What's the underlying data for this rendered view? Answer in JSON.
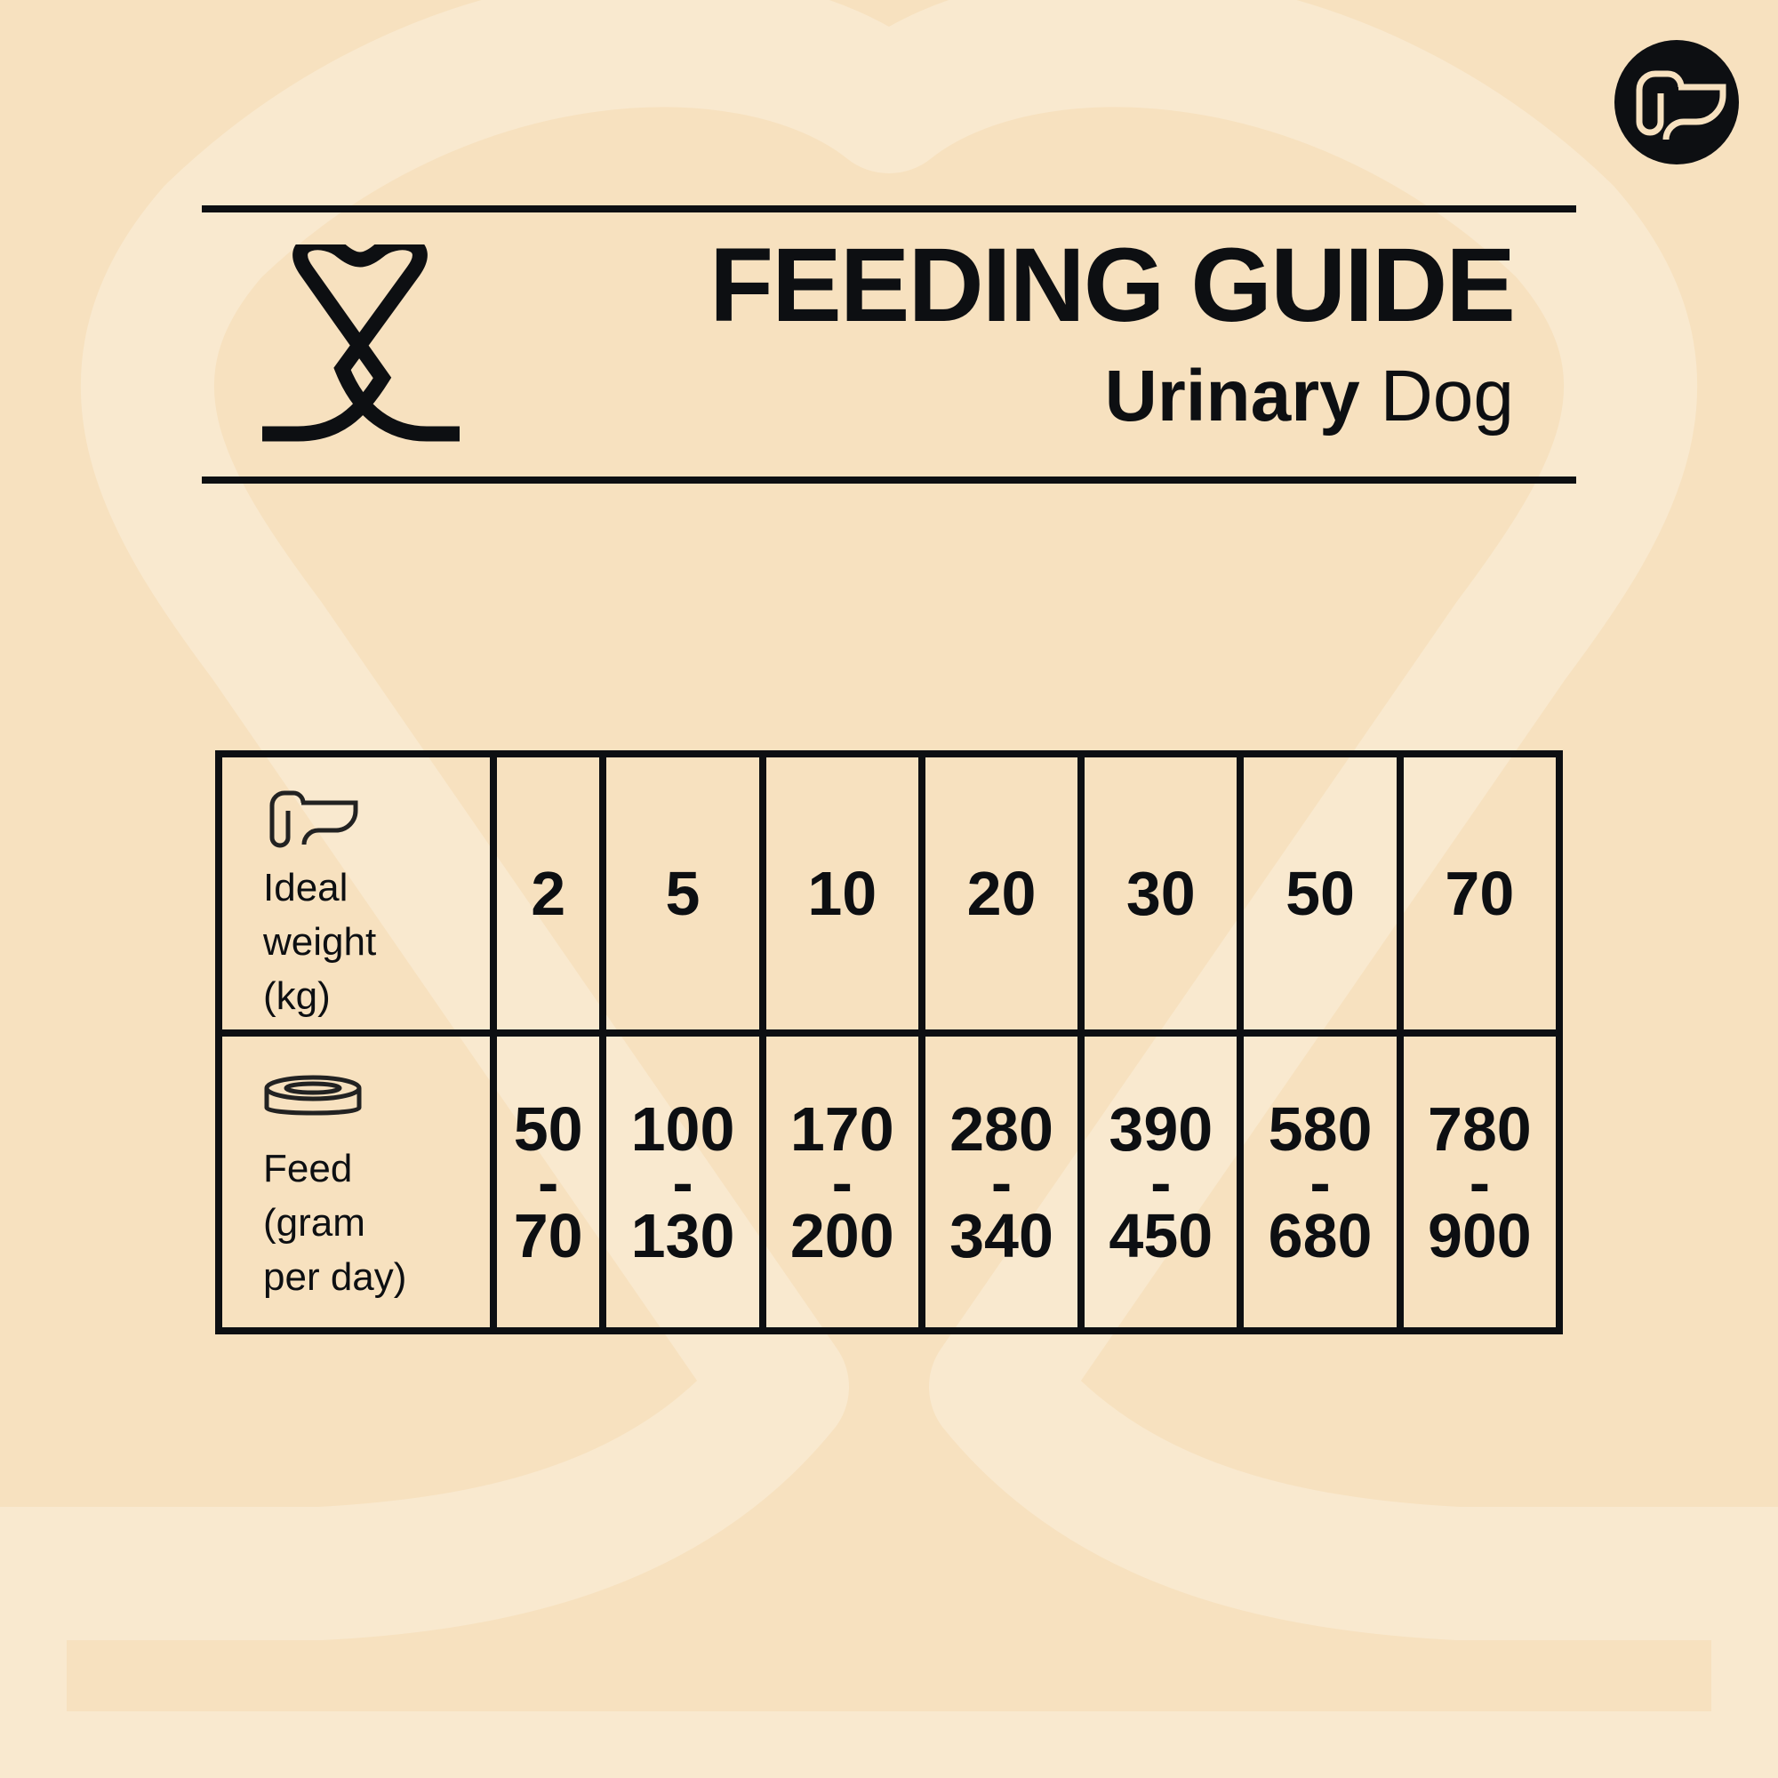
{
  "header": {
    "title": "FEEDING GUIDE",
    "subtitle_bold": "Urinary",
    "subtitle_regular": "Dog"
  },
  "colors": {
    "background": "#f7e1bf",
    "background_shape": "#f9e9cf",
    "ink": "#0d0f12"
  },
  "icons": {
    "badge": "dog-head-icon",
    "logo": "heart-ribbon-icon",
    "weight": "dog-head-icon",
    "feed": "bowl-icon"
  },
  "table": {
    "weight_label": [
      "Ideal",
      "weight",
      "(kg)"
    ],
    "feed_label": [
      "Feed",
      "(gram",
      "per day)"
    ],
    "weights": [
      "2",
      "5",
      "10",
      "20",
      "30",
      "50",
      "70"
    ],
    "feed": [
      {
        "min": "50",
        "sep": "-",
        "max": "70"
      },
      {
        "min": "100",
        "sep": "-",
        "max": "130"
      },
      {
        "min": "170",
        "sep": "-",
        "max": "200"
      },
      {
        "min": "280",
        "sep": "-",
        "max": "340"
      },
      {
        "min": "390",
        "sep": "-",
        "max": "450"
      },
      {
        "min": "580",
        "sep": "-",
        "max": "680"
      },
      {
        "min": "780",
        "sep": "-",
        "max": "900"
      }
    ]
  }
}
